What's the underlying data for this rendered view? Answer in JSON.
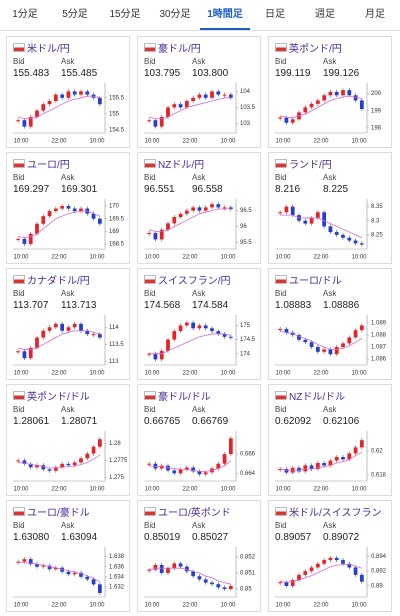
{
  "tabs": [
    "1分足",
    "5分足",
    "15分足",
    "30分足",
    "1時間足",
    "日足",
    "週足",
    "月足"
  ],
  "selected_tab": 4,
  "bid_label": "Bid",
  "ask_label": "Ask",
  "time_labels": [
    "10:00",
    "22:00",
    "10:00"
  ],
  "up_color": "#e0262b",
  "down_color": "#2440c8",
  "ma_color": "#d46ad4",
  "chart_data": [
    {
      "type": "candlestick",
      "title": "米ドル/円",
      "bid": 155.483,
      "ask": 155.485,
      "ylim": [
        154.4,
        155.9
      ],
      "yticks": [
        155.5,
        155,
        154.5
      ],
      "close": [
        154.8,
        154.6,
        154.9,
        155.1,
        155.3,
        155.4,
        155.6,
        155.5,
        155.7,
        155.6,
        155.7,
        155.6,
        155.5,
        155.3
      ],
      "ma": [
        154.9,
        154.85,
        154.85,
        154.9,
        155.0,
        155.1,
        155.2,
        155.3,
        155.4,
        155.45,
        155.5,
        155.55,
        155.55,
        155.5
      ]
    },
    {
      "type": "candlestick",
      "title": "豪ドル/円",
      "bid": 103.795,
      "ask": {
        "value": 103.8,
        "label": "103.800"
      },
      "ylim": [
        102.7,
        104.2
      ],
      "yticks": [
        104,
        103.5,
        103
      ],
      "close": [
        103.1,
        102.9,
        103.2,
        103.5,
        103.6,
        103.5,
        103.7,
        103.8,
        103.9,
        103.8,
        104.0,
        103.9,
        103.9,
        103.8
      ],
      "ma": [
        103.2,
        103.15,
        103.15,
        103.2,
        103.3,
        103.4,
        103.5,
        103.55,
        103.6,
        103.65,
        103.7,
        103.75,
        103.8,
        103.8
      ]
    },
    {
      "type": "candlestick",
      "title": "英ポンド/円",
      "bid": 199.119,
      "ask": 199.126,
      "ylim": [
        197.7,
        200.5
      ],
      "yticks": [
        200,
        199,
        198
      ],
      "close": [
        198.6,
        198.3,
        198.5,
        198.9,
        199.2,
        199.4,
        199.6,
        199.9,
        200.1,
        199.9,
        200.2,
        199.9,
        199.6,
        199.1
      ],
      "ma": [
        198.7,
        198.6,
        198.6,
        198.7,
        198.8,
        199.0,
        199.2,
        199.4,
        199.6,
        199.7,
        199.8,
        199.85,
        199.8,
        199.7
      ]
    },
    {
      "type": "candlestick",
      "title": "ユーロ/円",
      "bid": 169.297,
      "ask": 169.301,
      "ylim": [
        168.3,
        170.2
      ],
      "yticks": [
        170,
        169.5,
        169,
        168.5
      ],
      "close": [
        168.7,
        168.5,
        168.9,
        169.3,
        169.6,
        169.8,
        169.9,
        170.0,
        169.9,
        169.8,
        169.9,
        169.7,
        169.5,
        169.3
      ],
      "ma": [
        168.8,
        168.75,
        168.8,
        168.9,
        169.1,
        169.3,
        169.5,
        169.6,
        169.7,
        169.75,
        169.8,
        169.8,
        169.7,
        169.6
      ]
    },
    {
      "type": "candlestick",
      "title": "NZドル/円",
      "bid": 96.551,
      "ask": 96.558,
      "ylim": [
        95.3,
        96.8
      ],
      "yticks": [
        96.5,
        96,
        95.5
      ],
      "close": [
        95.8,
        95.6,
        95.9,
        96.1,
        96.3,
        96.4,
        96.5,
        96.6,
        96.5,
        96.6,
        96.7,
        96.6,
        96.6,
        96.55
      ],
      "ma": [
        95.9,
        95.85,
        95.85,
        95.9,
        96.0,
        96.1,
        96.2,
        96.3,
        96.4,
        96.45,
        96.5,
        96.55,
        96.55,
        96.55
      ]
    },
    {
      "type": "candlestick",
      "title": "ランド/円",
      "bid": 8.216,
      "ask": 8.225,
      "ylim": [
        8.2,
        8.37
      ],
      "yticks": [
        8.35,
        8.3,
        8.25
      ],
      "close": [
        8.33,
        8.35,
        8.32,
        8.3,
        8.29,
        8.31,
        8.33,
        8.28,
        8.26,
        8.25,
        8.24,
        8.23,
        8.22,
        8.216
      ],
      "ma": [
        8.32,
        8.32,
        8.32,
        8.31,
        8.31,
        8.31,
        8.31,
        8.3,
        8.29,
        8.28,
        8.27,
        8.26,
        8.25,
        8.24
      ]
    },
    {
      "type": "candlestick",
      "title": "カナダドル/円",
      "bid": 113.707,
      "ask": 113.713,
      "ylim": [
        112.9,
        114.3
      ],
      "yticks": [
        114,
        113.5,
        113
      ],
      "close": [
        113.3,
        113.1,
        113.4,
        113.7,
        113.9,
        114.0,
        114.1,
        113.9,
        114.0,
        114.1,
        113.9,
        113.8,
        113.8,
        113.7
      ],
      "ma": [
        113.4,
        113.35,
        113.35,
        113.4,
        113.5,
        113.6,
        113.7,
        113.8,
        113.85,
        113.9,
        113.9,
        113.9,
        113.85,
        113.8
      ]
    },
    {
      "type": "candlestick",
      "title": "スイスフラン/円",
      "bid": 174.568,
      "ask": 174.584,
      "ylim": [
        173.6,
        175.3
      ],
      "yticks": [
        175,
        174.5,
        174
      ],
      "close": [
        174.0,
        173.8,
        174.1,
        174.5,
        174.8,
        175.0,
        175.1,
        174.9,
        175.0,
        174.9,
        174.8,
        174.7,
        174.6,
        174.57
      ],
      "ma": [
        174.0,
        174.0,
        174.0,
        174.1,
        174.2,
        174.3,
        174.4,
        174.5,
        174.6,
        174.65,
        174.7,
        174.7,
        174.7,
        174.65
      ]
    },
    {
      "type": "candlestick",
      "title": "ユーロ/ドル",
      "bid": 1.08883,
      "ask": 1.08886,
      "ylim": [
        1.0855,
        1.0895
      ],
      "yticks": [
        1.089,
        1.088,
        1.087,
        1.086
      ],
      "close": [
        1.0885,
        1.0882,
        1.088,
        1.0876,
        1.0874,
        1.087,
        1.0866,
        1.0868,
        1.0864,
        1.087,
        1.0873,
        1.0878,
        1.0884,
        1.0888
      ],
      "ma": [
        1.0883,
        1.0882,
        1.0881,
        1.0879,
        1.0877,
        1.0875,
        1.0872,
        1.087,
        1.0868,
        1.0868,
        1.0869,
        1.0871,
        1.0874,
        1.0877
      ]
    },
    {
      "type": "candlestick",
      "title": "英ポンド/ドル",
      "bid": 1.28061,
      "ask": 1.28071,
      "ylim": [
        1.2745,
        1.2815
      ],
      "yticks": [
        1.28,
        1.2775,
        1.275
      ],
      "close": [
        1.2775,
        1.277,
        1.2765,
        1.2768,
        1.2762,
        1.276,
        1.2765,
        1.277,
        1.2768,
        1.2772,
        1.2778,
        1.2785,
        1.2795,
        1.2806
      ],
      "ma": [
        1.2772,
        1.2771,
        1.2769,
        1.2768,
        1.2766,
        1.2764,
        1.2764,
        1.2765,
        1.2766,
        1.2767,
        1.2769,
        1.2772,
        1.2777,
        1.2783
      ]
    },
    {
      "type": "candlestick",
      "title": "豪ドル/ドル",
      "bid": 0.66765,
      "ask": 0.66769,
      "ylim": [
        0.6632,
        0.6682
      ],
      "yticks": [
        0.666,
        0.664
      ],
      "close": [
        0.665,
        0.6645,
        0.6648,
        0.6643,
        0.664,
        0.6644,
        0.6646,
        0.6642,
        0.6639,
        0.6641,
        0.6645,
        0.665,
        0.666,
        0.66765
      ],
      "ma": [
        0.6648,
        0.6647,
        0.6647,
        0.6646,
        0.6645,
        0.6644,
        0.6644,
        0.6643,
        0.6642,
        0.6642,
        0.6643,
        0.6645,
        0.6648,
        0.6653
      ]
    },
    {
      "type": "candlestick",
      "title": "NZドル/ドル",
      "bid": 0.62092,
      "ask": 0.62106,
      "ylim": [
        0.6175,
        0.6215
      ],
      "yticks": [
        0.62,
        0.618
      ],
      "close": [
        0.6185,
        0.6182,
        0.6186,
        0.6183,
        0.6188,
        0.6185,
        0.619,
        0.6188,
        0.6192,
        0.6195,
        0.6193,
        0.6198,
        0.6203,
        0.6209
      ],
      "ma": [
        0.6185,
        0.6184,
        0.6184,
        0.6184,
        0.6185,
        0.6185,
        0.6186,
        0.6187,
        0.6188,
        0.619,
        0.6191,
        0.6193,
        0.6196,
        0.6199
      ]
    },
    {
      "type": "candlestick",
      "title": "ユーロ/豪ドル",
      "bid": {
        "value": 1.6308,
        "label": "1.63080"
      },
      "ask": 1.63094,
      "ylim": [
        1.63,
        1.6395
      ],
      "yticks": [
        1.638,
        1.636,
        1.634,
        1.632
      ],
      "close": [
        1.637,
        1.6375,
        1.6365,
        1.636,
        1.6362,
        1.6355,
        1.6358,
        1.635,
        1.6345,
        1.6348,
        1.634,
        1.6335,
        1.6325,
        1.6308
      ],
      "ma": [
        1.6368,
        1.6368,
        1.6367,
        1.6365,
        1.6363,
        1.636,
        1.6358,
        1.6355,
        1.6352,
        1.635,
        1.6346,
        1.6342,
        1.6337,
        1.633
      ]
    },
    {
      "type": "candlestick",
      "title": "ユーロ/英ポンド",
      "bid": 0.85019,
      "ask": 0.85027,
      "ylim": [
        0.8495,
        0.8525
      ],
      "yticks": [
        0.852,
        0.851,
        0.85
      ],
      "close": [
        0.8512,
        0.8515,
        0.851,
        0.8513,
        0.8516,
        0.8514,
        0.8511,
        0.8508,
        0.8506,
        0.8504,
        0.8503,
        0.8501,
        0.85,
        0.85019
      ],
      "ma": [
        0.8512,
        0.8513,
        0.8513,
        0.8513,
        0.8513,
        0.8513,
        0.8512,
        0.8511,
        0.851,
        0.8508,
        0.8507,
        0.8505,
        0.8504,
        0.8503
      ]
    },
    {
      "type": "candlestick",
      "title": "米ドル/スイスフラン",
      "bid": 0.89057,
      "ask": 0.89072,
      "ylim": [
        0.8885,
        0.895
      ],
      "yticks": [
        0.894,
        0.892,
        0.89
      ],
      "close": [
        0.8905,
        0.89,
        0.8908,
        0.8915,
        0.892,
        0.8925,
        0.893,
        0.8935,
        0.8938,
        0.8935,
        0.893,
        0.8925,
        0.8915,
        0.89057
      ],
      "ma": [
        0.8906,
        0.8905,
        0.8906,
        0.8908,
        0.8911,
        0.8914,
        0.8918,
        0.8922,
        0.8926,
        0.8928,
        0.8929,
        0.8929,
        0.8927,
        0.8924
      ]
    }
  ]
}
